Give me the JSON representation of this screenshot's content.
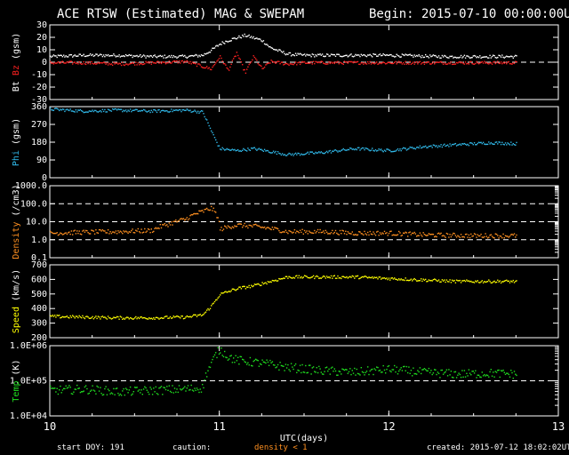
{
  "header": {
    "title": "ACE RTSW (Estimated) MAG & SWEPAM",
    "begin": "Begin: 2015-07-10 00:00:00UTC"
  },
  "footer": {
    "start_doy": "start DOY: 191",
    "caution_label": "caution:",
    "caution_note": "density < 1",
    "created": "created: 2015-07-12 18:02:02UTC"
  },
  "colors": {
    "bt": "#ffffff",
    "bz": "#ff2020",
    "phi": "#30b8e8",
    "density": "#ff9020",
    "speed": "#ffff00",
    "temp": "#20e020",
    "frame": "#ffffff",
    "background": "#000000"
  },
  "chart_data": {
    "type": "scatter",
    "xlabel": "UTC(days)",
    "xlim": [
      10,
      13
    ],
    "xticks": [
      "10",
      "11",
      "12",
      "13"
    ],
    "panels": [
      {
        "id": "mag",
        "ylabel_parts": [
          {
            "text": "Bt",
            "color": "#ffffff"
          },
          {
            "text": "Bz",
            "color": "#ff2020"
          },
          {
            "text": "(gsm)",
            "color": "#ffffff"
          }
        ],
        "ylim": [
          -30,
          30
        ],
        "yticks": [
          "-30",
          "-20",
          "-10",
          "0",
          "10",
          "20",
          "30"
        ],
        "ref_lines": [
          0
        ],
        "series": [
          {
            "name": "Bt",
            "color": "#ffffff",
            "x": [
              10.0,
              10.2,
              10.4,
              10.6,
              10.8,
              10.9,
              10.95,
              11.0,
              11.05,
              11.1,
              11.15,
              11.2,
              11.25,
              11.3,
              11.4,
              11.5,
              11.7,
              12.0,
              12.3,
              12.6,
              12.75
            ],
            "y": [
              5,
              6,
              6,
              5,
              5,
              6,
              10,
              15,
              18,
              20,
              22,
              20,
              18,
              12,
              7,
              6,
              6,
              6,
              5,
              5,
              5
            ]
          },
          {
            "name": "Bz",
            "color": "#ff2020",
            "x": [
              10.0,
              10.2,
              10.4,
              10.6,
              10.8,
              10.9,
              10.95,
              11.0,
              11.05,
              11.1,
              11.15,
              11.2,
              11.25,
              11.3,
              11.4,
              11.5,
              11.7,
              12.0,
              12.3,
              12.6,
              12.75
            ],
            "y": [
              0,
              0,
              -1,
              0,
              1,
              -3,
              -5,
              5,
              -6,
              8,
              -8,
              5,
              -5,
              1,
              -1,
              0,
              0,
              0,
              0,
              0,
              0
            ]
          }
        ]
      },
      {
        "id": "phi",
        "ylabel_parts": [
          {
            "text": "Phi",
            "color": "#30b8e8"
          },
          {
            "text": "(gsm)",
            "color": "#ffffff"
          }
        ],
        "ylim": [
          0,
          360
        ],
        "yticks": [
          "0",
          "90",
          "180",
          "270",
          "360"
        ],
        "ref_lines": [],
        "series": [
          {
            "name": "Phi",
            "color": "#30b8e8",
            "x": [
              10.0,
              10.2,
              10.4,
              10.6,
              10.8,
              10.9,
              10.95,
              11.0,
              11.1,
              11.2,
              11.4,
              11.6,
              11.8,
              12.0,
              12.2,
              12.4,
              12.6,
              12.75
            ],
            "y": [
              350,
              340,
              345,
              340,
              345,
              335,
              240,
              150,
              140,
              150,
              120,
              130,
              150,
              140,
              160,
              170,
              180,
              175
            ]
          }
        ]
      },
      {
        "id": "density",
        "log": true,
        "ylabel_parts": [
          {
            "text": "Density",
            "color": "#ff9020"
          },
          {
            "text": "(/cm3)",
            "color": "#ffffff"
          }
        ],
        "ylim": [
          0.1,
          1000
        ],
        "yticks": [
          "0.1",
          "1.0",
          "10.0",
          "100.0",
          "1000.0"
        ],
        "ref_lines": [
          1,
          10,
          100
        ],
        "series": [
          {
            "name": "Density",
            "color": "#ff9020",
            "x": [
              10.0,
              10.2,
              10.4,
              10.6,
              10.7,
              10.8,
              10.9,
              10.95,
              11.0,
              11.1,
              11.2,
              11.4,
              11.6,
              11.8,
              12.0,
              12.2,
              12.5,
              12.75
            ],
            "y": [
              2.5,
              2.8,
              3,
              3.5,
              8,
              15,
              40,
              60,
              4,
              7,
              6,
              3,
              3,
              2.5,
              2.5,
              2,
              1.8,
              1.8
            ]
          }
        ]
      },
      {
        "id": "speed",
        "ylabel_parts": [
          {
            "text": "Speed",
            "color": "#ffff00"
          },
          {
            "text": "(km/s)",
            "color": "#ffffff"
          }
        ],
        "ylim": [
          200,
          700
        ],
        "yticks": [
          "200",
          "300",
          "400",
          "500",
          "600",
          "700"
        ],
        "ref_lines": [],
        "series": [
          {
            "name": "Speed",
            "color": "#ffff00",
            "x": [
              10.0,
              10.2,
              10.4,
              10.6,
              10.8,
              10.9,
              10.95,
              11.0,
              11.1,
              11.2,
              11.3,
              11.4,
              11.6,
              11.8,
              12.0,
              12.2,
              12.4,
              12.6,
              12.75
            ],
            "y": [
              350,
              345,
              340,
              340,
              345,
              360,
              420,
              500,
              540,
              560,
              590,
              620,
              620,
              620,
              610,
              600,
              590,
              590,
              590
            ]
          }
        ]
      },
      {
        "id": "temp",
        "log": true,
        "ylabel_parts": [
          {
            "text": "Temp",
            "color": "#20e020"
          },
          {
            "text": "(K)",
            "color": "#ffffff"
          }
        ],
        "ylim": [
          10000,
          1000000
        ],
        "yticks": [
          "1.0E+04",
          "1.0E+05",
          "1.0E+06"
        ],
        "ref_lines": [
          100000
        ],
        "series": [
          {
            "name": "Temp",
            "color": "#20e020",
            "x": [
              10.0,
              10.2,
              10.4,
              10.6,
              10.8,
              10.9,
              10.95,
              11.0,
              11.05,
              11.1,
              11.2,
              11.4,
              11.6,
              11.8,
              12.0,
              12.2,
              12.4,
              12.6,
              12.75
            ],
            "y": [
              55000,
              60000,
              50000,
              55000,
              60000,
              65000,
              300000,
              800000,
              500000,
              400000,
              350000,
              250000,
              200000,
              180000,
              220000,
              180000,
              160000,
              170000,
              160000
            ]
          }
        ]
      }
    ]
  }
}
